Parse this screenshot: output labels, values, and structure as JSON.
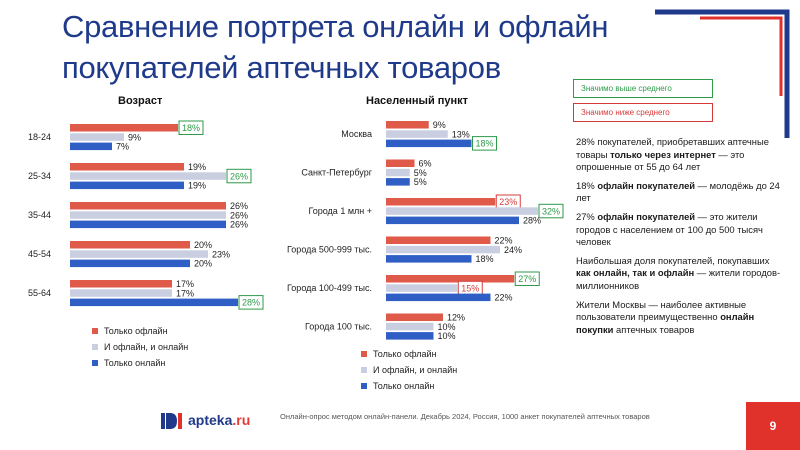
{
  "slide": {
    "title_line1": "Сравнение портрета онлайн и офлайн",
    "title_line2": "покупателей аптечных товаров",
    "page_number": "9",
    "footer_note": "Онлайн-опрос методом онлайн-панели. Декабрь 2024, Россия, 1000 анкет покупателей аптечных товаров",
    "logo_name": "apteka",
    "logo_tld": ".ru"
  },
  "significance": {
    "above": "Значимо выше среднего",
    "below": "Значимо ниже среднего",
    "above_color": "#2e9a4a",
    "below_color": "#d63b3b"
  },
  "colors": {
    "offline": "#e05a4a",
    "both": "#c9cfe0",
    "online": "#2f5fc4"
  },
  "legend": {
    "offline": "Только офлайн",
    "both": "И офлайн, и онлайн",
    "online": "Только онлайн"
  },
  "notes": [
    {
      "parts": [
        {
          "t": "28% покупателей, приобретавших аптечные товары "
        },
        {
          "t": "только через интернет",
          "b": true
        },
        {
          "t": " — это опрошенные от 55 до 64 лет"
        }
      ]
    },
    {
      "parts": [
        {
          "t": "18% "
        },
        {
          "t": "офлайн покупателей",
          "b": true
        },
        {
          "t": " — молодёжь до 24 лет"
        }
      ]
    },
    {
      "parts": [
        {
          "t": "27% "
        },
        {
          "t": "офлайн покупателей",
          "b": true
        },
        {
          "t": " — это жители городов с населением от 100 до 500 тысяч человек"
        }
      ]
    },
    {
      "parts": [
        {
          "t": "Наибольшая доля покупателей, покупавших "
        },
        {
          "t": "как онлайн, так и офлайн",
          "b": true
        },
        {
          "t": " — жители городов-миллионников"
        }
      ]
    },
    {
      "parts": [
        {
          "t": "Жители Москвы — наиболее активные пользователи преимущественно "
        },
        {
          "t": "онлайн покупки",
          "b": true
        },
        {
          "t": " аптечных товаров"
        }
      ]
    }
  ],
  "chart_data": [
    {
      "type": "bar",
      "orientation": "horizontal",
      "title": "Возраст",
      "categories": [
        "18-24",
        "25-34",
        "35-44",
        "45-54",
        "55-64"
      ],
      "series": [
        {
          "name": "Только офлайн",
          "values": [
            18,
            19,
            26,
            20,
            17
          ]
        },
        {
          "name": "И офлайн, и онлайн",
          "values": [
            9,
            26,
            26,
            23,
            17
          ]
        },
        {
          "name": "Только онлайн",
          "values": [
            7,
            19,
            26,
            20,
            28
          ]
        }
      ],
      "highlights": [
        {
          "category": "18-24",
          "series": "Только офлайн",
          "kind": "above"
        },
        {
          "category": "25-34",
          "series": "И офлайн, и онлайн",
          "kind": "above"
        },
        {
          "category": "55-64",
          "series": "Только онлайн",
          "kind": "above"
        }
      ]
    },
    {
      "type": "bar",
      "orientation": "horizontal",
      "title": "Населенный пункт",
      "categories": [
        "Москва",
        "Санкт-Петербург",
        "Города 1 млн +",
        "Города 500-999 тыс.",
        "Города 100-499 тыс.",
        "Города 100 тыс."
      ],
      "series": [
        {
          "name": "Только офлайн",
          "values": [
            9,
            6,
            23,
            22,
            27,
            12
          ]
        },
        {
          "name": "И офлайн, и онлайн",
          "values": [
            13,
            5,
            32,
            24,
            15,
            10
          ]
        },
        {
          "name": "Только онлайн",
          "values": [
            18,
            5,
            28,
            18,
            22,
            10
          ]
        }
      ],
      "highlights": [
        {
          "category": "Москва",
          "series": "Только онлайн",
          "kind": "above"
        },
        {
          "category": "Города 1 млн +",
          "series": "Только офлайн",
          "kind": "below"
        },
        {
          "category": "Города 1 млн +",
          "series": "И офлайн, и онлайн",
          "kind": "above"
        },
        {
          "category": "Города 100-499 тыс.",
          "series": "Только офлайн",
          "kind": "above"
        },
        {
          "category": "Города 100-499 тыс.",
          "series": "И офлайн, и онлайн",
          "kind": "below"
        }
      ]
    }
  ]
}
